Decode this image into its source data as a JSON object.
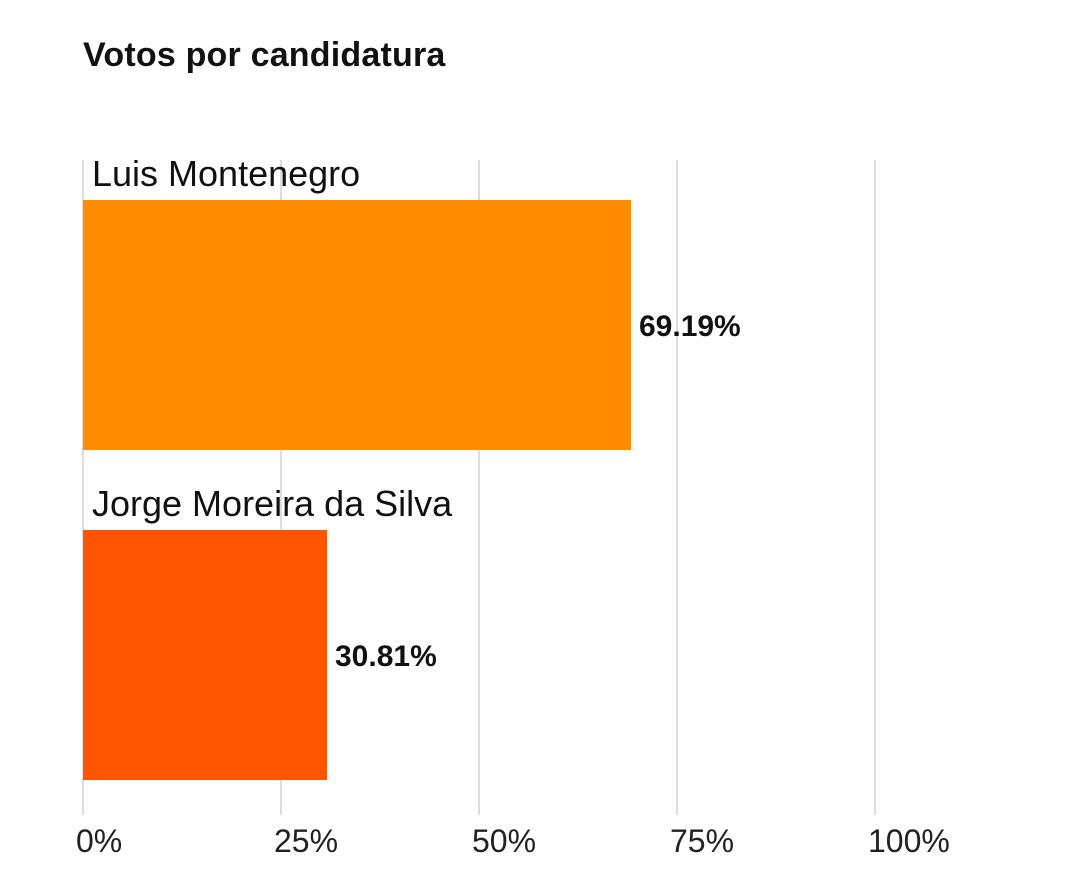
{
  "chart_data": {
    "type": "bar",
    "orientation": "horizontal",
    "title": "Votos por candidatura",
    "categories": [
      "Luis Montenegro",
      "Jorge Moreira da Silva"
    ],
    "values": [
      69.19,
      30.81
    ],
    "value_labels": [
      "69.19%",
      "30.81%"
    ],
    "colors": [
      "#FF8C00",
      "#FF5500"
    ],
    "xlim": [
      0,
      100
    ],
    "ticks": [
      0,
      25,
      50,
      75,
      100
    ],
    "tick_labels": [
      "0%",
      "25%",
      "50%",
      "75%",
      "100%"
    ],
    "grid": true
  }
}
